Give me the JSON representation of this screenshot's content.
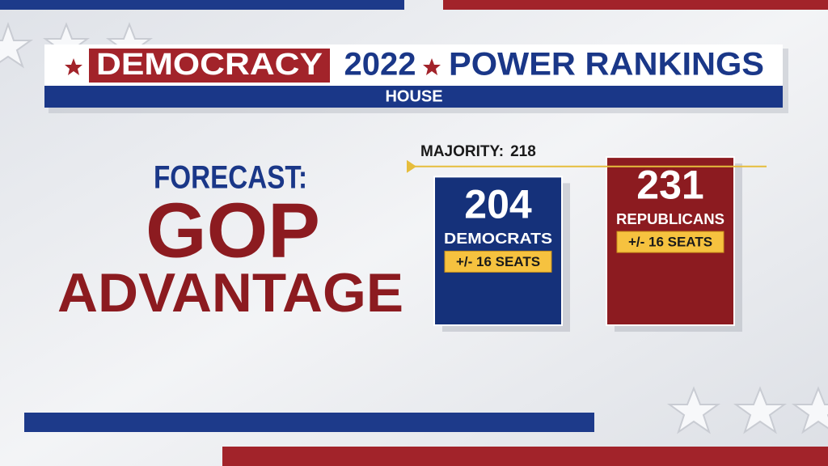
{
  "header": {
    "brand": "DEMOCRACY",
    "year": "2022",
    "title": "POWER RANKINGS",
    "subtitle": "HOUSE"
  },
  "headline": {
    "kicker": "FORECAST:",
    "line1": "GOP",
    "line2": "ADVANTAGE"
  },
  "chart_data": {
    "type": "bar",
    "series": [
      {
        "name": "DEMOCRATS",
        "color": "#15317a",
        "values": [
          204
        ],
        "errors": [
          16
        ],
        "error_labels": [
          "+/- 16 SEATS"
        ]
      },
      {
        "name": "REPUBLICANS",
        "color": "#8c1b20",
        "values": [
          231
        ],
        "errors": [
          16
        ],
        "error_labels": [
          "+/- 16 SEATS"
        ]
      }
    ],
    "reference_line": {
      "label": "MAJORITY:",
      "value": 218,
      "color": "#e6bd3c"
    }
  }
}
